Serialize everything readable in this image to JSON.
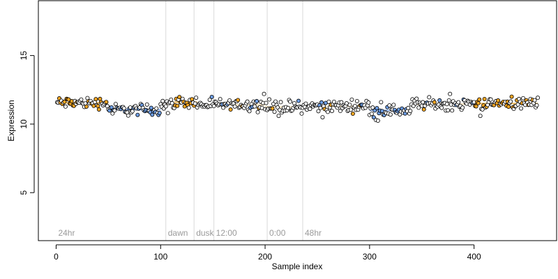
{
  "chart_data": {
    "type": "scatter",
    "xlabel": "Sample index",
    "ylabel": "Expression",
    "xlim": [
      -17,
      479
    ],
    "ylim": [
      1.5,
      19
    ],
    "xticks": [
      0,
      100,
      200,
      300,
      400
    ],
    "yticks": [
      5,
      10,
      15
    ],
    "grid": false,
    "phase_markers": [
      {
        "label": "24hr",
        "start": 0,
        "line_at": null
      },
      {
        "label": "dawn",
        "start": 105,
        "line_at": 105
      },
      {
        "label": "dusk",
        "start": 132,
        "line_at": 132
      },
      {
        "label": "12:00",
        "start": 151,
        "line_at": 151
      },
      {
        "label": "0:00",
        "start": 202,
        "line_at": 202
      },
      {
        "label": "48hr",
        "start": 236,
        "line_at": 236
      }
    ],
    "colors": {
      "point_edge": "#000000",
      "fill_high": "#f5a623",
      "fill_low": "#6f9fe6",
      "fill_neutral": "#ffffff",
      "fit_line": "#f0b24a",
      "fit_line_low": "#8fb3ef",
      "phase_line": "#d9d9d9",
      "phase_label": "#9a9a9a"
    },
    "segments": [
      {
        "x0": 1,
        "x1": 50,
        "base": 11.55,
        "tone": "high"
      },
      {
        "x0": 50,
        "x1": 100,
        "base": 11.05,
        "tone": "low"
      },
      {
        "x0": 100,
        "x1": 113,
        "base": 11.45,
        "tone": "neutral"
      },
      {
        "x0": 113,
        "x1": 135,
        "base": 11.6,
        "tone": "high"
      },
      {
        "x0": 135,
        "x1": 200,
        "base": 11.4,
        "tone": "neutral"
      },
      {
        "x0": 200,
        "x1": 238,
        "base": 11.25,
        "tone": "neutral"
      },
      {
        "x0": 238,
        "x1": 300,
        "base": 11.3,
        "tone": "neutral"
      },
      {
        "x0": 300,
        "x1": 340,
        "base": 11.0,
        "tone": "low"
      },
      {
        "x0": 340,
        "x1": 400,
        "base": 11.45,
        "tone": "neutral"
      },
      {
        "x0": 400,
        "x1": 461,
        "base": 11.5,
        "tone": "high"
      }
    ],
    "n_points": 461,
    "outliers": [
      {
        "x": 107,
        "y": 10.8
      },
      {
        "x": 199,
        "y": 12.2
      },
      {
        "x": 204,
        "y": 11.8
      },
      {
        "x": 213,
        "y": 10.6
      },
      {
        "x": 255,
        "y": 10.5
      },
      {
        "x": 306,
        "y": 10.3
      },
      {
        "x": 308,
        "y": 10.25
      },
      {
        "x": 311,
        "y": 11.6
      },
      {
        "x": 377,
        "y": 12.2
      },
      {
        "x": 406,
        "y": 10.6
      },
      {
        "x": 436,
        "y": 12.0
      }
    ]
  }
}
